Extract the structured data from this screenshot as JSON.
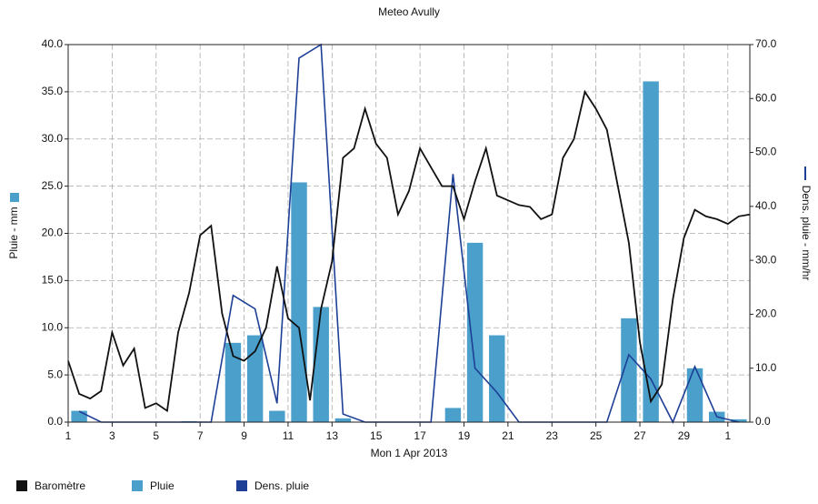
{
  "chart_data": {
    "type": "combo",
    "title": "Meteo  Avully",
    "xlabel": "Mon 1 Apr 2013",
    "ylabel": "Pluie - mm",
    "y2label": "Dens. pluie - mm/hr",
    "xlim": [
      1,
      32
    ],
    "xticks": [
      {
        "value": 1,
        "label": "1"
      },
      3,
      5,
      7,
      9,
      11,
      13,
      15,
      17,
      19,
      21,
      23,
      25,
      27,
      29,
      {
        "value": 31,
        "label": "1"
      }
    ],
    "ylim": [
      0,
      40
    ],
    "yticks": [
      {
        "value": 0,
        "label": "0.0"
      },
      {
        "value": 5,
        "label": "5.0"
      },
      {
        "value": 10,
        "label": "10.0"
      },
      {
        "value": 15,
        "label": "15.0"
      },
      {
        "value": 20,
        "label": "20.0"
      },
      {
        "value": 25,
        "label": "25.0"
      },
      {
        "value": 30,
        "label": "30.0"
      },
      {
        "value": 35,
        "label": "35.0"
      },
      {
        "value": 40,
        "label": "40.0"
      }
    ],
    "y2lim": [
      0,
      70
    ],
    "y2ticks": [
      {
        "value": 0,
        "label": "0.0"
      },
      {
        "value": 10,
        "label": "10.0"
      },
      {
        "value": 20,
        "label": "20.0"
      },
      {
        "value": 30,
        "label": "30.0"
      },
      {
        "value": 40,
        "label": "40.0"
      },
      {
        "value": 50,
        "label": "50.0"
      },
      {
        "value": 60,
        "label": "60.0"
      },
      {
        "value": 70,
        "label": "70.0"
      }
    ],
    "grid": true,
    "legend": "bottom",
    "series": [
      {
        "name": "Baromètre",
        "type": "line",
        "color": "#111111",
        "x": [
          1,
          1.5,
          2,
          2.5,
          3,
          3.5,
          4,
          4.5,
          5,
          5.5,
          6,
          6.5,
          7,
          7.5,
          8,
          8.5,
          9,
          9.5,
          10,
          10.5,
          11,
          11.5,
          12,
          12.5,
          13,
          13.5,
          14,
          14.5,
          15,
          15.5,
          16,
          16.5,
          17,
          17.5,
          18,
          18.5,
          19,
          19.5,
          20,
          20.5,
          21,
          21.5,
          22,
          22.5,
          23,
          23.5,
          24,
          24.5,
          25,
          25.5,
          26,
          26.5,
          27,
          27.5,
          28,
          28.5,
          29,
          29.5,
          30,
          30.5,
          31,
          31.5,
          32
        ],
        "values": [
          6.5,
          3.0,
          2.5,
          3.3,
          9.5,
          6.0,
          7.8,
          1.5,
          2.0,
          1.2,
          9.5,
          13.7,
          19.8,
          20.8,
          11.5,
          7.0,
          6.5,
          7.5,
          10,
          16.5,
          11,
          10,
          2.3,
          12,
          17,
          28,
          29,
          33.2,
          29.5,
          28,
          22,
          24.5,
          29,
          27,
          25,
          25,
          21.5,
          25.5,
          29,
          24,
          23.5,
          23,
          22.8,
          21.5,
          22,
          28,
          30,
          35,
          33.2,
          31,
          25,
          19,
          8.5,
          2.2,
          4,
          13,
          19.5,
          22.5,
          21.8,
          21.5,
          21,
          21.8,
          22
        ]
      },
      {
        "name": "Pluie",
        "type": "bar",
        "color": "#4a9fcb",
        "x": [
          1,
          2,
          3,
          4,
          5,
          6,
          7,
          8,
          9,
          10,
          11,
          12,
          13,
          14,
          15,
          16,
          17,
          18,
          19,
          20,
          21,
          22,
          23,
          24,
          25,
          26,
          27,
          28,
          29,
          30,
          31
        ],
        "values": [
          1.2,
          0,
          0,
          0,
          0,
          0.1,
          0,
          8.4,
          9.2,
          1.2,
          25.4,
          12.2,
          0.4,
          0,
          0,
          0,
          0,
          1.5,
          19.0,
          9.2,
          0,
          0,
          0,
          0,
          0,
          11.0,
          36.1,
          0,
          5.7,
          1.1,
          0.3
        ]
      },
      {
        "name": "Dens. pluie",
        "type": "line",
        "axis": "y2",
        "color": "#1d3f95",
        "x": [
          1,
          2,
          3,
          4,
          5,
          6,
          7,
          8,
          9,
          10,
          11,
          12,
          13,
          14,
          15,
          16,
          17,
          18,
          19,
          20,
          21,
          22,
          23,
          24,
          25,
          26,
          27,
          28,
          29,
          30,
          31
        ],
        "values": [
          2,
          0,
          0,
          0,
          0,
          0,
          0,
          23.5,
          21,
          3.5,
          67.5,
          70,
          1.5,
          0,
          0,
          0,
          0,
          46,
          10,
          5.5,
          0,
          0,
          0,
          0,
          0,
          12.5,
          8,
          0,
          10.3,
          1,
          0
        ]
      }
    ]
  }
}
